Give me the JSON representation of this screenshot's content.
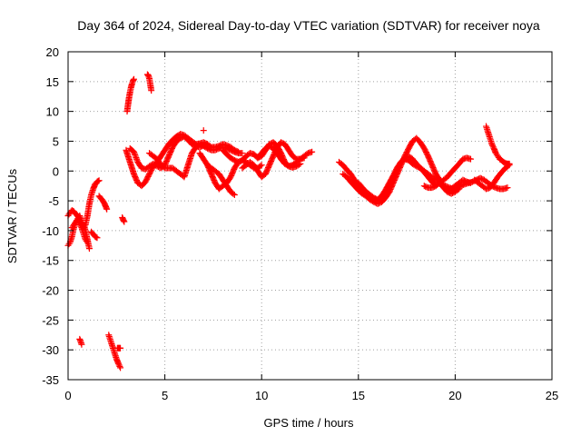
{
  "chart_data": {
    "type": "scatter",
    "title": "Day 364 of 2024, Sidereal Day-to-day VTEC variation (SDTVAR) for receiver noya",
    "xlabel": "GPS time / hours",
    "ylabel": "SDTVAR / TECUs",
    "xlim": [
      0,
      25
    ],
    "ylim": [
      -35,
      20
    ],
    "xticks": [
      "0",
      "5",
      "10",
      "15",
      "20",
      "25"
    ],
    "yticks": [
      "20",
      "15",
      "10",
      "5",
      "0",
      "-5",
      "-10",
      "-15",
      "-20",
      "-25",
      "-30",
      "-35"
    ],
    "grid": true,
    "marker": "plus",
    "color": "#ff0000",
    "series": [
      {
        "name": "s1",
        "x": [
          0.0,
          0.1,
          0.2,
          0.3,
          0.4,
          0.5,
          0.6,
          0.7,
          0.8,
          0.9,
          1.0,
          1.1,
          1.2,
          1.3,
          1.4,
          1.5,
          1.6
        ],
        "y": [
          -12.5,
          -12,
          -11,
          -9.5,
          -8.5,
          -8,
          -7.5,
          -8.5,
          -9.5,
          -9,
          -7.5,
          -5.5,
          -4,
          -3,
          -2.2,
          -1.8,
          -1.6
        ]
      },
      {
        "name": "s2",
        "x": [
          0.0,
          0.1,
          0.2,
          0.3,
          0.4,
          0.5,
          0.6,
          0.7,
          0.8,
          0.9,
          1.0,
          1.1
        ],
        "y": [
          -7.5,
          -7,
          -6.6,
          -6.8,
          -7.2,
          -7.6,
          -8,
          -8.5,
          -9,
          -10,
          -11.5,
          -13
        ]
      },
      {
        "name": "s3",
        "x": [
          0.2,
          0.3,
          0.4,
          0.5,
          0.6,
          0.7,
          0.8,
          0.9,
          1.0
        ],
        "y": [
          -9.5,
          -9,
          -8.5,
          -8.2,
          -8.8,
          -9.5,
          -10.5,
          -11.5,
          -12
        ]
      },
      {
        "name": "s4",
        "x": [
          1.2,
          1.3,
          1.4,
          1.5
        ],
        "y": [
          -10.2,
          -10.6,
          -11,
          -11.2
        ]
      },
      {
        "name": "s5",
        "x": [
          1.6,
          1.7,
          1.8,
          1.9,
          2.0
        ],
        "y": [
          -4.2,
          -4.6,
          -5,
          -5.6,
          -6.4
        ]
      },
      {
        "name": "s6",
        "x": [
          2.8,
          2.85,
          2.9
        ],
        "y": [
          -7.8,
          -8.2,
          -8.5
        ]
      },
      {
        "name": "s7",
        "x": [
          0.6,
          0.65,
          0.7
        ],
        "y": [
          -28.2,
          -28.6,
          -29.1
        ]
      },
      {
        "name": "s8",
        "x": [
          2.1,
          2.2,
          2.3,
          2.4,
          2.5,
          2.6,
          2.7
        ],
        "y": [
          -27.5,
          -28.5,
          -29.5,
          -30.5,
          -31.5,
          -32.3,
          -33
        ]
      },
      {
        "name": "s9",
        "x": [
          2.55,
          2.6,
          2.65,
          2.7
        ],
        "y": [
          -29.7,
          -29.7,
          -29.7,
          -29.7
        ]
      },
      {
        "name": "s10",
        "x": [
          3.05,
          3.1,
          3.15,
          3.2,
          3.25,
          3.3,
          3.35,
          3.4
        ],
        "y": [
          10,
          11.2,
          12.3,
          13.2,
          14,
          14.6,
          15.1,
          15.4
        ]
      },
      {
        "name": "s11",
        "x": [
          4.1,
          4.15,
          4.2,
          4.25,
          4.3
        ],
        "y": [
          16.2,
          16,
          15.5,
          14.5,
          13.5
        ]
      },
      {
        "name": "s12",
        "x": [
          3.0,
          3.2,
          3.4,
          3.6,
          3.8,
          4.0,
          4.2,
          4.4,
          4.6,
          4.8,
          5.0,
          5.2,
          5.4,
          5.6,
          5.8,
          6.0,
          6.2,
          6.4,
          6.6,
          6.8,
          7.0,
          7.2,
          7.4,
          7.6,
          7.8,
          8.0,
          8.2,
          8.4,
          8.6,
          8.8
        ],
        "y": [
          3.5,
          1.5,
          -0.5,
          -2,
          -2.5,
          -1.8,
          -0.5,
          0.8,
          1.5,
          2.5,
          3.5,
          4.5,
          5.2,
          5.8,
          6.2,
          6,
          5.5,
          5,
          4.5,
          4.6,
          4.8,
          4.5,
          4,
          4,
          4.2,
          4.5,
          4.3,
          4,
          3.5,
          3.2
        ]
      },
      {
        "name": "s13",
        "x": [
          3.2,
          3.4,
          3.6,
          3.8,
          4.0,
          4.2,
          4.4,
          4.6,
          4.8,
          5.0,
          5.2,
          5.4,
          5.6,
          5.8,
          6.0,
          6.2,
          6.4,
          6.6,
          6.8,
          7.0,
          7.2
        ],
        "y": [
          3.8,
          3.2,
          1.5,
          0.5,
          0.3,
          0.8,
          1.2,
          0.8,
          0.5,
          1,
          2.5,
          4,
          5,
          5.5,
          5.8,
          5.2,
          4.5,
          4.2,
          4,
          4.3,
          4.5
        ]
      },
      {
        "name": "s14",
        "x": [
          4.2,
          4.4,
          4.6,
          4.8,
          5.0,
          5.2,
          5.4,
          5.6,
          5.8,
          6.0,
          6.2,
          6.4,
          6.6,
          6.8,
          7.0,
          7.2,
          7.4,
          7.6,
          7.8,
          8.0,
          8.2,
          8.4,
          8.6,
          8.8,
          9.0
        ],
        "y": [
          3,
          2.5,
          2,
          1,
          0.5,
          0.5,
          0.5,
          0,
          -0.5,
          -1,
          1,
          3,
          4,
          4.5,
          4.2,
          3.8,
          3.5,
          3.5,
          3.8,
          4,
          3.8,
          3.5,
          3.2,
          3,
          3
        ]
      },
      {
        "name": "s15",
        "x": [
          6.8,
          7.0,
          7.2,
          7.4,
          7.6,
          7.8,
          8.0,
          8.2,
          8.4,
          8.6,
          8.8,
          9.0,
          9.2,
          9.4,
          9.6,
          9.8,
          10.0
        ],
        "y": [
          3,
          2,
          1,
          -0.5,
          -2,
          -3,
          -2.5,
          -2,
          -1,
          0.5,
          1.5,
          1.8,
          1.5,
          1,
          0.5,
          0.5,
          1
        ]
      },
      {
        "name": "s16",
        "x": [
          7.2,
          7.4,
          7.6,
          7.8,
          8.0,
          8.2,
          8.4,
          8.6
        ],
        "y": [
          1,
          0.5,
          0,
          -0.5,
          -1.5,
          -2.5,
          -3.5,
          -4
        ]
      },
      {
        "name": "s17",
        "x": [
          7.0
        ],
        "y": [
          6.8
        ]
      },
      {
        "name": "s18",
        "x": [
          8.0,
          8.2,
          8.4,
          8.6,
          8.8,
          9.0,
          9.2,
          9.4,
          9.6,
          9.8,
          10.0,
          10.2,
          10.4,
          10.6,
          10.8,
          11.0,
          11.2,
          11.4,
          11.6,
          11.8,
          12.0,
          12.2,
          12.4,
          12.6
        ],
        "y": [
          3.5,
          2.8,
          2.2,
          1.8,
          1.5,
          1.8,
          2.5,
          3,
          2.8,
          2.2,
          2.5,
          3.5,
          4.5,
          4.8,
          4.2,
          3,
          1.5,
          0.8,
          1,
          1.5,
          2,
          2.5,
          3,
          3.2
        ]
      },
      {
        "name": "s19",
        "x": [
          9.0,
          9.2,
          9.4,
          9.6,
          9.8,
          10.0,
          10.2,
          10.4,
          10.6,
          10.8,
          11.0,
          11.2,
          11.4,
          11.6,
          11.8,
          12.0,
          12.2
        ],
        "y": [
          0.5,
          1,
          1.5,
          1,
          0,
          -1,
          -0.5,
          1,
          2.5,
          4,
          4.8,
          4.5,
          3.5,
          2.5,
          2,
          2,
          2.2
        ]
      },
      {
        "name": "s20",
        "x": [
          9.8,
          10.0,
          10.2,
          10.4,
          10.6,
          10.8,
          11.0,
          11.2,
          11.4,
          11.6,
          11.8,
          12.0
        ],
        "y": [
          2.2,
          3,
          3.8,
          4.2,
          3.8,
          3,
          2,
          1.2,
          0.8,
          0.6,
          0.8,
          1.2
        ]
      },
      {
        "name": "s21",
        "x": [
          14.0,
          14.2,
          14.4,
          14.6,
          14.8,
          15.0,
          15.2,
          15.4,
          15.6,
          15.8,
          16.0,
          16.2,
          16.4,
          16.6,
          16.8,
          17.0,
          17.2,
          17.4,
          17.6,
          17.8,
          18.0,
          18.2,
          18.4,
          18.6,
          18.8,
          19.0,
          19.2,
          19.4,
          19.6,
          19.8,
          20.0,
          20.2,
          20.4,
          20.6,
          20.8
        ],
        "y": [
          1.5,
          1,
          0.2,
          -0.5,
          -1.5,
          -2.5,
          -3.5,
          -4.2,
          -4.8,
          -5.2,
          -5.5,
          -5.2,
          -4.5,
          -3.5,
          -2,
          -0.5,
          1,
          2.5,
          3.8,
          5,
          5.5,
          4.8,
          3.8,
          2.5,
          1,
          -0.5,
          -1.5,
          -2.5,
          -3.2,
          -3,
          -2.5,
          -2,
          -1.5,
          -1.8,
          -2
        ]
      },
      {
        "name": "s22",
        "x": [
          14.2,
          14.4,
          14.6,
          14.8,
          15.0,
          15.2,
          15.4,
          15.6,
          15.8,
          16.0,
          16.2,
          16.4,
          16.6,
          16.8,
          17.0,
          17.2,
          17.4,
          17.6,
          17.8,
          18.0,
          18.2,
          18.4,
          18.6,
          18.8,
          19.0,
          19.2,
          19.4,
          19.6,
          19.8,
          20.0,
          20.2
        ],
        "y": [
          -0.5,
          -1,
          -1.8,
          -2.5,
          -3.2,
          -3.8,
          -4.2,
          -4.5,
          -4.8,
          -5,
          -4.5,
          -3.8,
          -2.5,
          -1,
          0.5,
          1.5,
          2.2,
          2.5,
          2,
          1.2,
          0.5,
          0,
          -0.5,
          -1,
          -1.5,
          -2,
          -2.8,
          -3.5,
          -3.8,
          -3.5,
          -3
        ]
      },
      {
        "name": "s23",
        "x": [
          15.0,
          15.2,
          15.4,
          15.6,
          15.8,
          16.0,
          16.2,
          16.4,
          16.6,
          16.8,
          17.0,
          17.2,
          17.4,
          17.6,
          17.8,
          18.0,
          18.2,
          18.4,
          18.6,
          18.8,
          19.0
        ],
        "y": [
          -2,
          -2.8,
          -3.5,
          -4,
          -4.5,
          -4.8,
          -4.2,
          -3.2,
          -2,
          -0.8,
          0.5,
          1.5,
          2,
          1.8,
          1.2,
          0.8,
          0.5,
          -0.2,
          -1,
          -1.8,
          -2.5
        ]
      },
      {
        "name": "s24",
        "x": [
          18.4,
          18.6,
          18.8,
          19.0,
          19.2,
          19.4,
          19.6,
          19.8,
          20.0,
          20.2,
          20.4,
          20.6,
          20.8
        ],
        "y": [
          -2.5,
          -2.8,
          -2.8,
          -2.5,
          -2,
          -1.5,
          -1,
          -0.2,
          0.5,
          1.2,
          2,
          2.2,
          2
        ]
      },
      {
        "name": "s25",
        "x": [
          19.5,
          19.7,
          19.9,
          20.1,
          20.3,
          20.5,
          20.7,
          20.9,
          21.1,
          21.3,
          21.5,
          21.7,
          21.9,
          22.1,
          22.3,
          22.5,
          22.7
        ],
        "y": [
          -2.5,
          -2.8,
          -3,
          -2.8,
          -2.5,
          -2.2,
          -2,
          -1.8,
          -1.5,
          -1.2,
          -1.5,
          -2,
          -2.5,
          -2.8,
          -3,
          -3,
          -2.8
        ]
      },
      {
        "name": "s26",
        "x": [
          21.6,
          21.7,
          21.8,
          21.9,
          22.0,
          22.1,
          22.2,
          22.3,
          22.4,
          22.5,
          22.6,
          22.7,
          22.8
        ],
        "y": [
          7.5,
          6.5,
          5.5,
          4.5,
          3.8,
          3,
          2.5,
          2,
          1.8,
          1.5,
          1.3,
          1.2,
          1.2
        ]
      },
      {
        "name": "s27",
        "x": [
          21.0,
          21.2,
          21.4,
          21.6,
          21.8,
          22.0,
          22.2,
          22.4,
          22.6,
          22.8
        ],
        "y": [
          -1.5,
          -2,
          -2.5,
          -3,
          -2.8,
          -2,
          -1,
          -0.2,
          0.5,
          1
        ]
      }
    ]
  }
}
